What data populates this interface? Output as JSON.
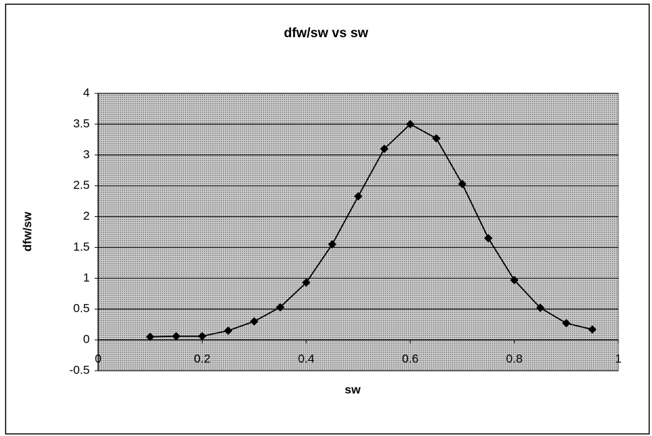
{
  "chart_data": {
    "type": "line",
    "title": "dfw/sw vs sw",
    "xlabel": "sw",
    "ylabel": "dfw/sw",
    "x": [
      0.1,
      0.15,
      0.2,
      0.25,
      0.3,
      0.35,
      0.4,
      0.45,
      0.5,
      0.55,
      0.6,
      0.65,
      0.7,
      0.75,
      0.8,
      0.85,
      0.9,
      0.95
    ],
    "series": [
      {
        "name": "dfw/sw",
        "color": "#000000",
        "values": [
          0.05,
          0.06,
          0.06,
          0.15,
          0.3,
          0.53,
          0.93,
          1.55,
          2.33,
          3.1,
          3.5,
          3.27,
          2.53,
          1.65,
          0.97,
          0.52,
          0.27,
          0.17
        ]
      }
    ],
    "xlim": [
      0,
      1
    ],
    "xticks": [
      0,
      0.2,
      0.4,
      0.6,
      0.8,
      1
    ],
    "ylim": [
      -0.5,
      4
    ],
    "yticks": [
      -0.5,
      0,
      0.5,
      1,
      1.5,
      2,
      2.5,
      3,
      3.5,
      4
    ],
    "grid": true
  }
}
